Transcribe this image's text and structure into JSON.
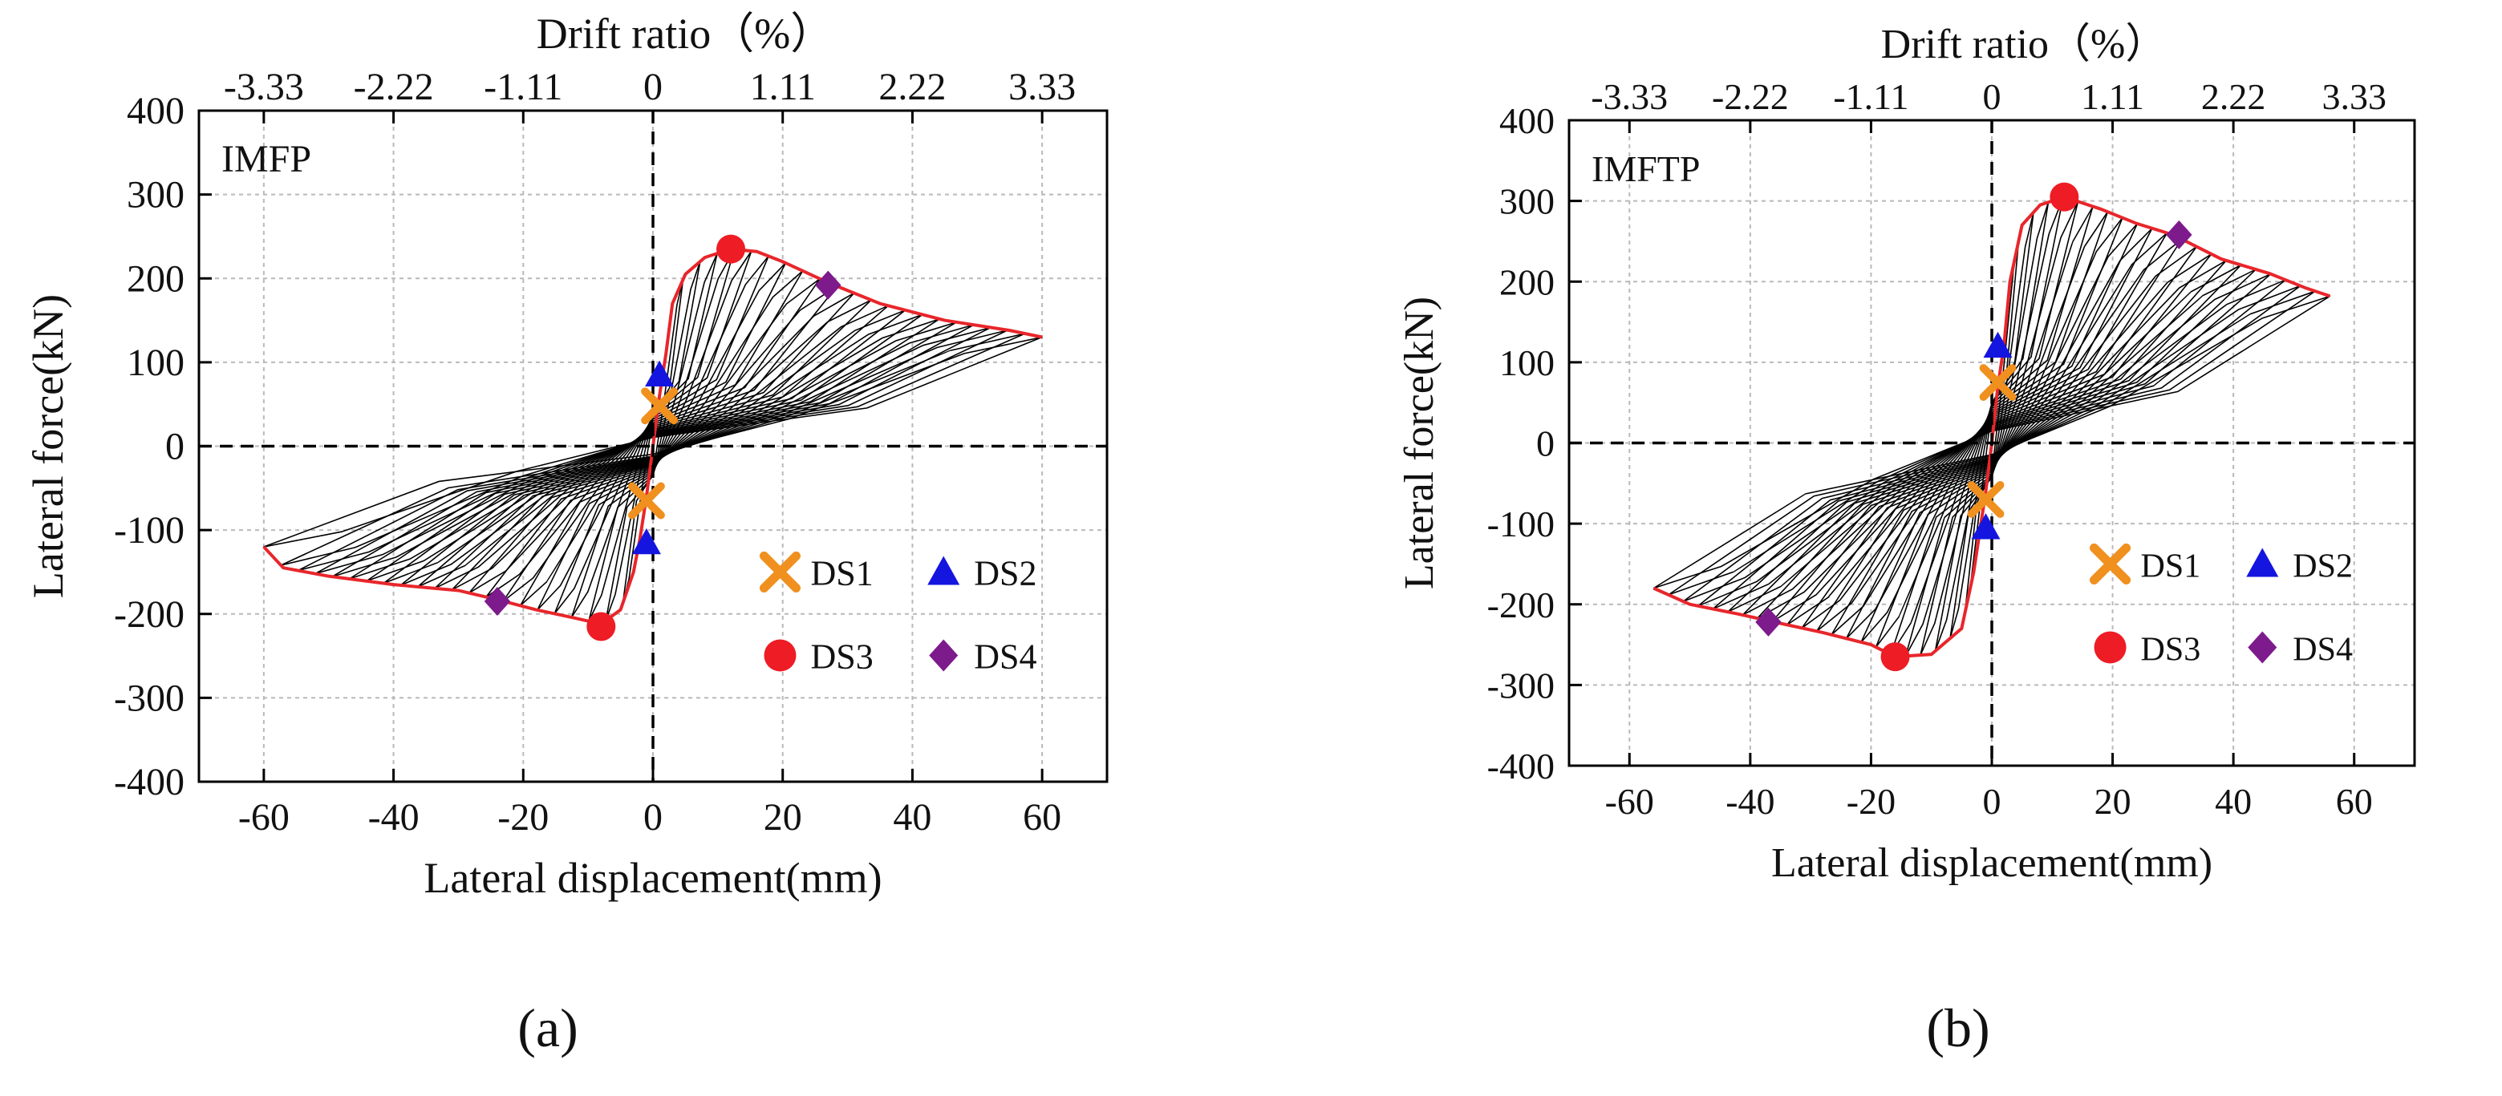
{
  "caption_labels": [
    "(a)",
    "(b)"
  ],
  "chart_data": [
    {
      "type": "scatter",
      "panel_label": "(a)",
      "specimen_label": "IMFP",
      "xlabel": "Lateral displacement(mm)",
      "ylabel": "Lateral force(kN)",
      "top_axis_label": "Drift ratio（%）",
      "top_ticks": [
        "-3.33",
        "-2.22",
        "-1.11",
        "0",
        "1.11",
        "2.22",
        "3.33"
      ],
      "top_tick_values": [
        -60,
        -40,
        -20,
        0,
        20,
        40,
        60
      ],
      "xlim": [
        -70,
        70
      ],
      "ylim": [
        -400,
        400
      ],
      "xticks": [
        -60,
        -40,
        -20,
        0,
        20,
        40,
        60
      ],
      "yticks": [
        -400,
        -300,
        -200,
        -100,
        0,
        100,
        200,
        300,
        400
      ],
      "grid": true,
      "legend_position": "lower-right",
      "hysteresis": {
        "color": "#000000",
        "loops": 22,
        "max_displacement": 60
      },
      "envelope": {
        "color": "#e8262b",
        "points": [
          [
            -60,
            -120
          ],
          [
            -57,
            -145
          ],
          [
            -50,
            -155
          ],
          [
            -40,
            -165
          ],
          [
            -30,
            -172
          ],
          [
            -24,
            -183
          ],
          [
            -18,
            -195
          ],
          [
            -12,
            -205
          ],
          [
            -8,
            -212
          ],
          [
            -5,
            -195
          ],
          [
            -3,
            -150
          ],
          [
            -2,
            -110
          ],
          [
            -1,
            -60
          ],
          [
            0,
            0
          ],
          [
            1,
            60
          ],
          [
            2,
            110
          ],
          [
            3,
            170
          ],
          [
            5,
            205
          ],
          [
            8,
            225
          ],
          [
            12,
            235
          ],
          [
            16,
            232
          ],
          [
            20,
            220
          ],
          [
            27,
            195
          ],
          [
            35,
            170
          ],
          [
            45,
            150
          ],
          [
            55,
            138
          ],
          [
            60,
            130
          ]
        ]
      },
      "damage_states": [
        {
          "name": "DS1",
          "marker": "x",
          "color": "#f0901e",
          "points": [
            [
              1,
              48
            ],
            [
              -1,
              -65
            ]
          ]
        },
        {
          "name": "DS2",
          "marker": "triangle",
          "color": "#1515e0",
          "points": [
            [
              1,
              85
            ],
            [
              -1,
              -115
            ]
          ]
        },
        {
          "name": "DS3",
          "marker": "circle",
          "color": "#ee1c25",
          "points": [
            [
              12,
              235
            ],
            [
              -8,
              -215
            ]
          ]
        },
        {
          "name": "DS4",
          "marker": "diamond",
          "color": "#7d1a8c",
          "points": [
            [
              27,
              192
            ],
            [
              -24,
              -185
            ]
          ]
        }
      ]
    },
    {
      "type": "scatter",
      "panel_label": "(b)",
      "specimen_label": "IMFTP",
      "xlabel": "Lateral displacement(mm)",
      "ylabel": "Lateral force(kN)",
      "top_axis_label": "Drift ratio（%）",
      "top_ticks": [
        "-3.33",
        "-2.22",
        "-1.11",
        "0",
        "1.11",
        "2.22",
        "3.33"
      ],
      "top_tick_values": [
        -60,
        -40,
        -20,
        0,
        20,
        40,
        60
      ],
      "xlim": [
        -70,
        70
      ],
      "ylim": [
        -400,
        400
      ],
      "xticks": [
        -60,
        -40,
        -20,
        0,
        20,
        40,
        60
      ],
      "yticks": [
        -400,
        -300,
        -200,
        -100,
        0,
        100,
        200,
        300,
        400
      ],
      "grid": true,
      "legend_position": "lower-right",
      "hysteresis": {
        "color": "#000000",
        "loops": 22,
        "max_displacement": 56
      },
      "envelope": {
        "color": "#e8262b",
        "points": [
          [
            -56,
            -180
          ],
          [
            -50,
            -200
          ],
          [
            -42,
            -212
          ],
          [
            -36,
            -222
          ],
          [
            -28,
            -235
          ],
          [
            -20,
            -250
          ],
          [
            -16,
            -265
          ],
          [
            -10,
            -262
          ],
          [
            -5,
            -230
          ],
          [
            -3,
            -160
          ],
          [
            -2,
            -110
          ],
          [
            -1,
            -60
          ],
          [
            0,
            0
          ],
          [
            1,
            70
          ],
          [
            2,
            120
          ],
          [
            3,
            200
          ],
          [
            5,
            270
          ],
          [
            8,
            295
          ],
          [
            12,
            305
          ],
          [
            18,
            290
          ],
          [
            24,
            272
          ],
          [
            30,
            258
          ],
          [
            38,
            228
          ],
          [
            46,
            210
          ],
          [
            52,
            192
          ],
          [
            56,
            182
          ]
        ]
      },
      "damage_states": [
        {
          "name": "DS1",
          "marker": "x",
          "color": "#f0901e",
          "points": [
            [
              1,
              75
            ],
            [
              -1,
              -70
            ]
          ]
        },
        {
          "name": "DS2",
          "marker": "triangle",
          "color": "#1515e0",
          "points": [
            [
              1,
              120
            ],
            [
              -1,
              -105
            ]
          ]
        },
        {
          "name": "DS3",
          "marker": "circle",
          "color": "#ee1c25",
          "points": [
            [
              12,
              305
            ],
            [
              -16,
              -265
            ]
          ]
        },
        {
          "name": "DS4",
          "marker": "diamond",
          "color": "#7d1a8c",
          "points": [
            [
              31,
              258
            ],
            [
              -37,
              -222
            ]
          ]
        }
      ]
    }
  ]
}
